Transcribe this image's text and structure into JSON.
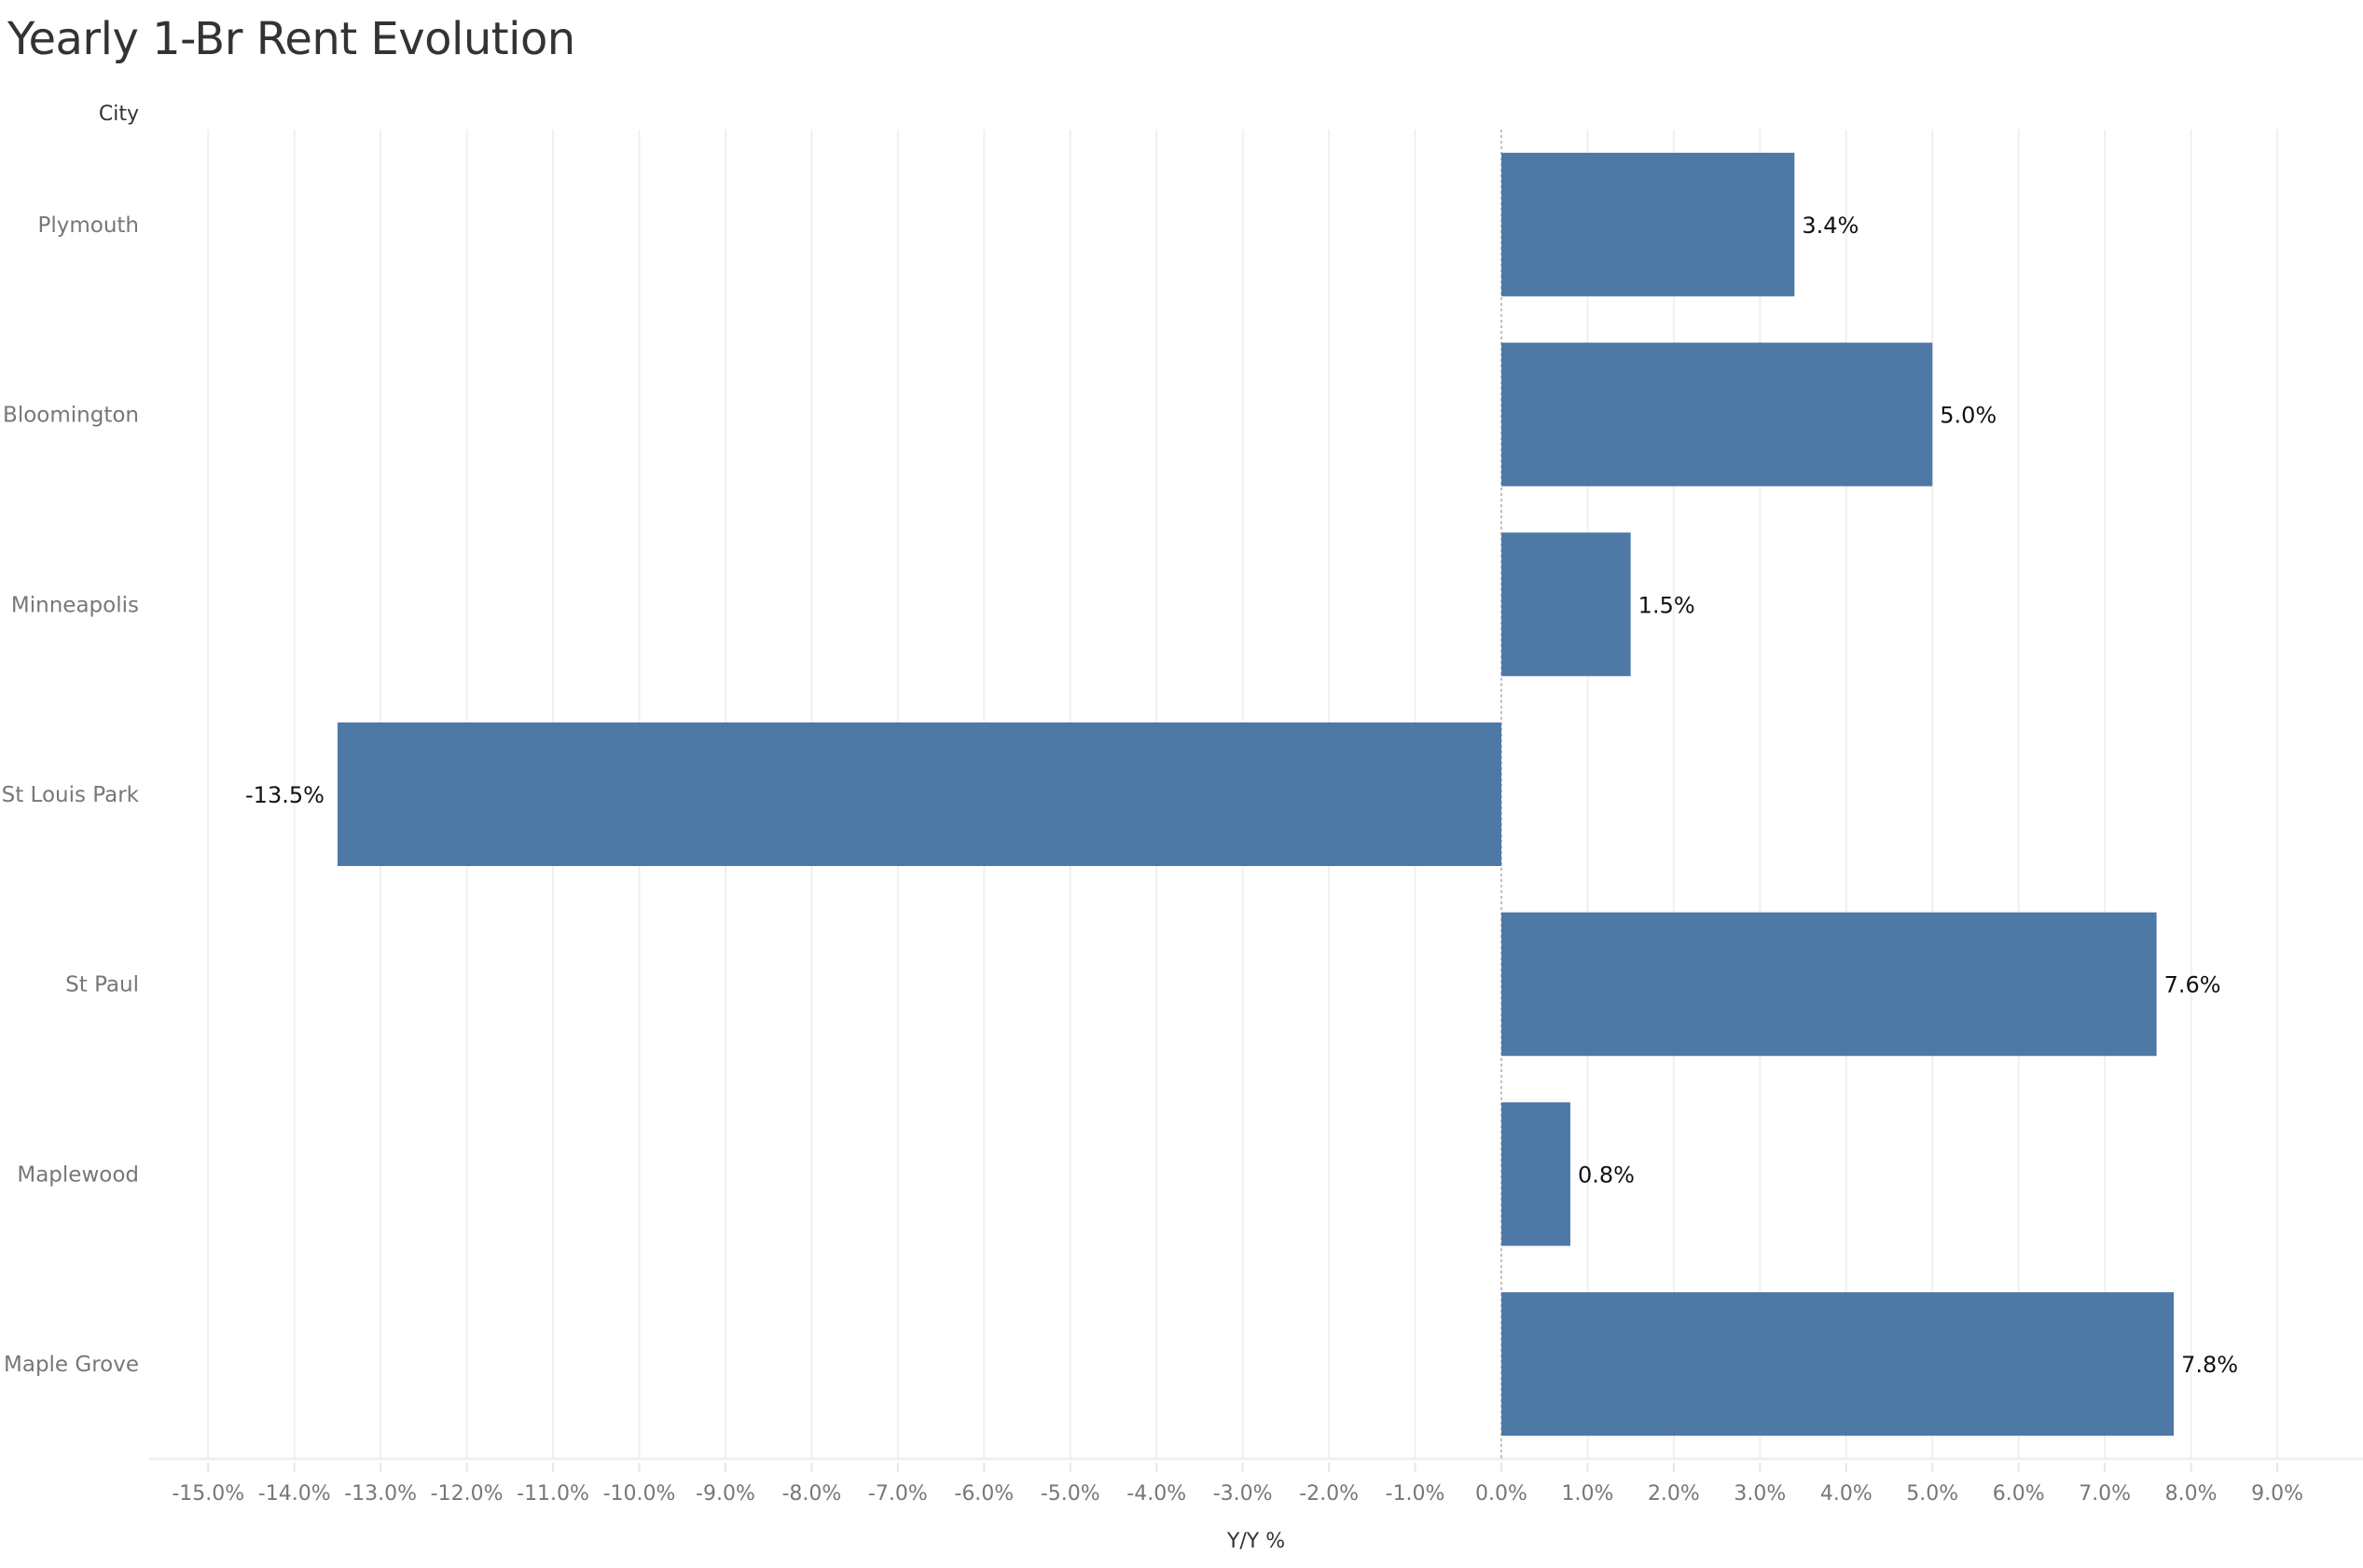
{
  "chart_data": {
    "type": "bar",
    "orientation": "horizontal",
    "title": "Yearly 1-Br Rent Evolution",
    "ylabel": "City",
    "xlabel": "Y/Y %",
    "categories": [
      "Plymouth",
      "Bloomington",
      "Minneapolis",
      "St Louis Park",
      "St Paul",
      "Maplewood",
      "Maple Grove"
    ],
    "values": [
      3.4,
      5.0,
      1.5,
      -13.5,
      7.6,
      0.8,
      7.8
    ],
    "data_labels": [
      "3.4%",
      "5.0%",
      "1.5%",
      "-13.5%",
      "7.6%",
      "0.8%",
      "7.8%"
    ],
    "xticks": [
      "-15.0%",
      "-14.0%",
      "-13.0%",
      "-12.0%",
      "-11.0%",
      "-10.0%",
      "-9.0%",
      "-8.0%",
      "-7.0%",
      "-6.0%",
      "-5.0%",
      "-4.0%",
      "-3.0%",
      "-2.0%",
      "-1.0%",
      "0.0%",
      "1.0%",
      "2.0%",
      "3.0%",
      "4.0%",
      "5.0%",
      "6.0%",
      "7.0%",
      "8.0%",
      "9.0%"
    ],
    "xtick_values": [
      -15,
      -14,
      -13,
      -12,
      -11,
      -10,
      -9,
      -8,
      -7,
      -6,
      -5,
      -4,
      -3,
      -2,
      -1,
      0,
      1,
      2,
      3,
      4,
      5,
      6,
      7,
      8,
      9
    ],
    "xlim": [
      -15.7,
      9.8
    ],
    "grid": "vertical",
    "bar_color": "#4e79a7"
  }
}
